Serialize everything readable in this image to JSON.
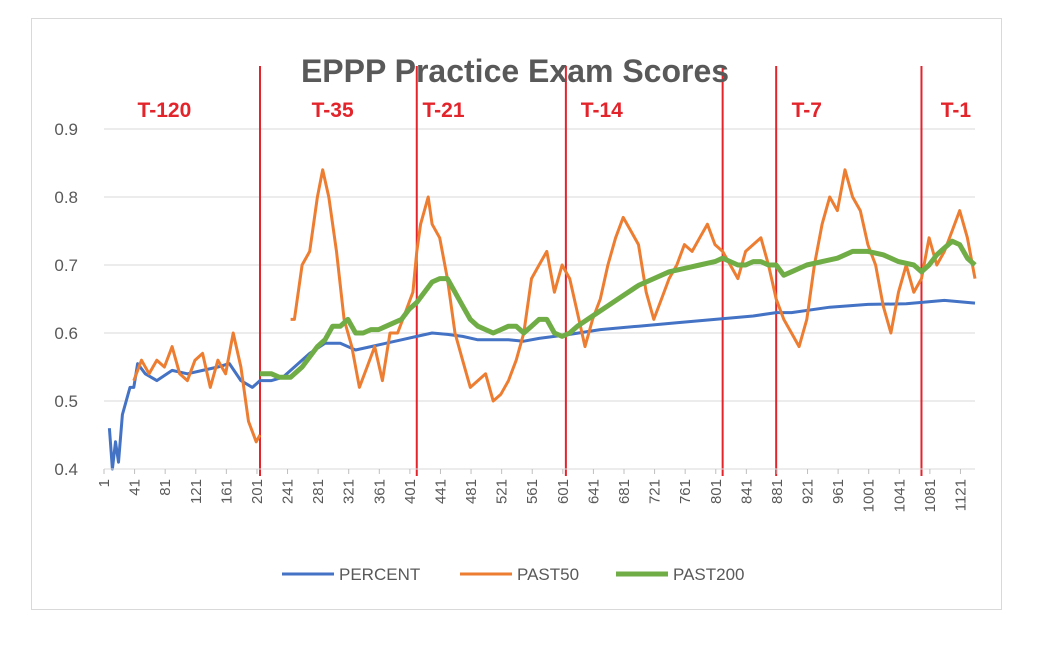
{
  "chart_data": {
    "type": "line",
    "title": "EPPP Practice Exam Scores",
    "xlabel": "",
    "ylabel": "",
    "xlim": [
      1,
      1140
    ],
    "ylim": [
      0.4,
      0.9
    ],
    "y_ticks": [
      "0.4",
      "0.5",
      "0.6",
      "0.7",
      "0.8",
      "0.9"
    ],
    "x_ticks": [
      "1",
      "41",
      "81",
      "121",
      "161",
      "201",
      "241",
      "281",
      "321",
      "361",
      "401",
      "441",
      "481",
      "521",
      "561",
      "601",
      "641",
      "681",
      "721",
      "761",
      "801",
      "841",
      "881",
      "921",
      "961",
      "1001",
      "1041",
      "1081",
      "1121"
    ],
    "grid": "horizontal",
    "legend_position": "bottom",
    "markers": [
      {
        "label": "T-120",
        "x": null,
        "label_x": 80
      },
      {
        "label": "T-35",
        "x": 205,
        "label_x": 300
      },
      {
        "label": "T-21",
        "x": 410,
        "label_x": 445
      },
      {
        "label": "T-14",
        "x": 605,
        "label_x": 652
      },
      {
        "label": "T-7",
        "x": 810,
        "label_x": 920
      },
      {
        "label": "",
        "x": 880,
        "label_x": null
      },
      {
        "label": "T-1",
        "x": 1070,
        "label_x": 1115
      }
    ],
    "series": [
      {
        "name": "PERCENT",
        "color": "#4472c4",
        "x": [
          8,
          12,
          16,
          20,
          25,
          30,
          35,
          40,
          45,
          55,
          70,
          90,
          110,
          130,
          150,
          165,
          180,
          195,
          205,
          220,
          235,
          250,
          270,
          290,
          310,
          330,
          350,
          370,
          390,
          410,
          430,
          450,
          470,
          490,
          510,
          530,
          550,
          570,
          590,
          610,
          650,
          700,
          750,
          800,
          850,
          880,
          900,
          950,
          1000,
          1050,
          1100,
          1140
        ],
        "y": [
          0.46,
          0.4,
          0.44,
          0.41,
          0.48,
          0.5,
          0.52,
          0.52,
          0.555,
          0.54,
          0.53,
          0.545,
          0.54,
          0.545,
          0.55,
          0.555,
          0.53,
          0.52,
          0.53,
          0.53,
          0.535,
          0.55,
          0.57,
          0.585,
          0.585,
          0.575,
          0.58,
          0.585,
          0.59,
          0.595,
          0.6,
          0.598,
          0.595,
          0.59,
          0.59,
          0.59,
          0.588,
          0.592,
          0.595,
          0.598,
          0.605,
          0.61,
          0.615,
          0.62,
          0.625,
          0.63,
          0.63,
          0.638,
          0.642,
          0.643,
          0.648,
          0.644
        ]
      },
      {
        "name": "PAST50",
        "color": "#ed7d31",
        "segments": [
          {
            "x": [
              40,
              50,
              60,
              70,
              80,
              90,
              100,
              110,
              120,
              130,
              140,
              150,
              160,
              170,
              180,
              190,
              200,
              205
            ],
            "y": [
              0.53,
              0.56,
              0.54,
              0.56,
              0.55,
              0.58,
              0.54,
              0.53,
              0.56,
              0.57,
              0.52,
              0.56,
              0.54,
              0.6,
              0.55,
              0.47,
              0.44,
              0.45
            ]
          },
          {
            "x": [
              245,
              250,
              260,
              270,
              280,
              287,
              295,
              305,
              315,
              325,
              335,
              345,
              355,
              365,
              375,
              385,
              395,
              405,
              410,
              415,
              420,
              425,
              430,
              440,
              450,
              460,
              470,
              480,
              490,
              500,
              510,
              520,
              530,
              540,
              550,
              560,
              570,
              580,
              590,
              600,
              610,
              620,
              630,
              640,
              650,
              660,
              670,
              680,
              690,
              700,
              710,
              720,
              730,
              740,
              750,
              760,
              770,
              780,
              790,
              800,
              810,
              820,
              830,
              840,
              850,
              860,
              870,
              880,
              890,
              900,
              910,
              920,
              930,
              940,
              950,
              960,
              970,
              980,
              990,
              1000,
              1010,
              1020,
              1030,
              1040,
              1050,
              1060,
              1070,
              1080,
              1090,
              1100,
              1110,
              1120,
              1130,
              1140
            ],
            "y": [
              0.62,
              0.62,
              0.7,
              0.72,
              0.8,
              0.84,
              0.8,
              0.72,
              0.62,
              0.58,
              0.52,
              0.55,
              0.58,
              0.53,
              0.6,
              0.6,
              0.63,
              0.66,
              0.72,
              0.76,
              0.78,
              0.8,
              0.76,
              0.74,
              0.68,
              0.6,
              0.56,
              0.52,
              0.53,
              0.54,
              0.5,
              0.51,
              0.53,
              0.56,
              0.6,
              0.68,
              0.7,
              0.72,
              0.66,
              0.7,
              0.68,
              0.63,
              0.58,
              0.62,
              0.65,
              0.7,
              0.74,
              0.77,
              0.75,
              0.73,
              0.66,
              0.62,
              0.65,
              0.68,
              0.7,
              0.73,
              0.72,
              0.74,
              0.76,
              0.73,
              0.72,
              0.7,
              0.68,
              0.72,
              0.73,
              0.74,
              0.7,
              0.65,
              0.62,
              0.6,
              0.58,
              0.62,
              0.7,
              0.76,
              0.8,
              0.78,
              0.84,
              0.8,
              0.78,
              0.73,
              0.7,
              0.64,
              0.6,
              0.66,
              0.7,
              0.66,
              0.68,
              0.74,
              0.7,
              0.72,
              0.75,
              0.78,
              0.74,
              0.68
            ]
          }
        ]
      },
      {
        "name": "PAST200",
        "color": "#70ad47",
        "x": [
          205,
          220,
          230,
          245,
          260,
          280,
          290,
          300,
          310,
          320,
          330,
          340,
          350,
          360,
          370,
          380,
          390,
          400,
          410,
          420,
          430,
          440,
          450,
          460,
          470,
          480,
          490,
          500,
          510,
          520,
          530,
          540,
          550,
          560,
          570,
          580,
          590,
          600,
          610,
          620,
          640,
          660,
          680,
          700,
          720,
          740,
          760,
          780,
          800,
          810,
          820,
          830,
          840,
          850,
          860,
          870,
          880,
          890,
          900,
          920,
          940,
          960,
          980,
          1000,
          1020,
          1040,
          1060,
          1070,
          1080,
          1090,
          1100,
          1110,
          1120,
          1130,
          1140
        ],
        "y": [
          0.54,
          0.54,
          0.535,
          0.535,
          0.55,
          0.58,
          0.59,
          0.61,
          0.61,
          0.62,
          0.6,
          0.6,
          0.605,
          0.605,
          0.61,
          0.615,
          0.62,
          0.635,
          0.645,
          0.66,
          0.675,
          0.68,
          0.68,
          0.66,
          0.64,
          0.62,
          0.61,
          0.605,
          0.6,
          0.605,
          0.61,
          0.61,
          0.6,
          0.61,
          0.62,
          0.62,
          0.6,
          0.595,
          0.6,
          0.61,
          0.625,
          0.64,
          0.655,
          0.67,
          0.68,
          0.69,
          0.695,
          0.7,
          0.705,
          0.71,
          0.705,
          0.7,
          0.7,
          0.705,
          0.705,
          0.7,
          0.7,
          0.685,
          0.69,
          0.7,
          0.705,
          0.71,
          0.72,
          0.72,
          0.715,
          0.705,
          0.7,
          0.69,
          0.7,
          0.715,
          0.725,
          0.735,
          0.73,
          0.71,
          0.7
        ]
      }
    ]
  }
}
